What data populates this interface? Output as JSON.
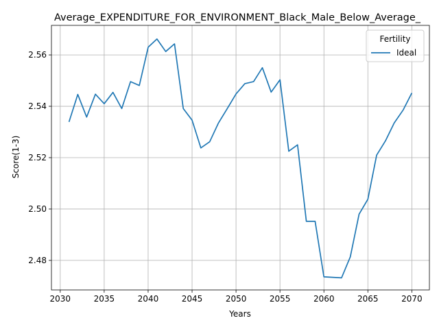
{
  "chart_data": {
    "type": "line",
    "title": "Average_EXPENDITURE_FOR_ENVIRONMENT_Black_Male_Below_Average_",
    "xlabel": "Years",
    "ylabel": "Score(1-3)",
    "xlim": [
      2029,
      2072
    ],
    "ylim": [
      2.4685,
      2.5715
    ],
    "x_ticks": [
      2030,
      2035,
      2040,
      2045,
      2050,
      2055,
      2060,
      2065,
      2070
    ],
    "y_ticks": [
      2.48,
      2.5,
      2.52,
      2.54,
      2.56
    ],
    "x_tick_labels": [
      "2030",
      "2035",
      "2040",
      "2045",
      "2050",
      "2055",
      "2060",
      "2065",
      "2070"
    ],
    "y_tick_labels": [
      "2.48",
      "2.50",
      "2.52",
      "2.54",
      "2.56"
    ],
    "grid": true,
    "legend": {
      "title": "Fertility",
      "placement": "top-right"
    },
    "series": [
      {
        "name": "Ideal",
        "color": "#1f77b4",
        "x": [
          2031,
          2032,
          2033,
          2034,
          2035,
          2036,
          2037,
          2038,
          2039,
          2040,
          2041,
          2042,
          2043,
          2044,
          2045,
          2046,
          2047,
          2048,
          2049,
          2050,
          2051,
          2052,
          2053,
          2054,
          2055,
          2056,
          2057,
          2058,
          2059,
          2060,
          2061,
          2062,
          2063,
          2064,
          2065,
          2066,
          2067,
          2068,
          2069,
          2070
        ],
        "values": [
          2.5339,
          2.5446,
          2.5358,
          2.5447,
          2.541,
          2.5454,
          2.5391,
          2.5496,
          2.5481,
          2.563,
          2.5662,
          2.5613,
          2.5643,
          2.5391,
          2.5346,
          2.5238,
          2.5262,
          2.5335,
          2.5391,
          2.5448,
          2.5488,
          2.5496,
          2.555,
          2.5455,
          2.5503,
          2.5225,
          2.525,
          2.4952,
          2.4952,
          2.4736,
          2.4734,
          2.4732,
          2.4814,
          2.498,
          2.5038,
          2.521,
          2.5265,
          2.5335,
          2.5385,
          2.5452
        ]
      }
    ]
  }
}
